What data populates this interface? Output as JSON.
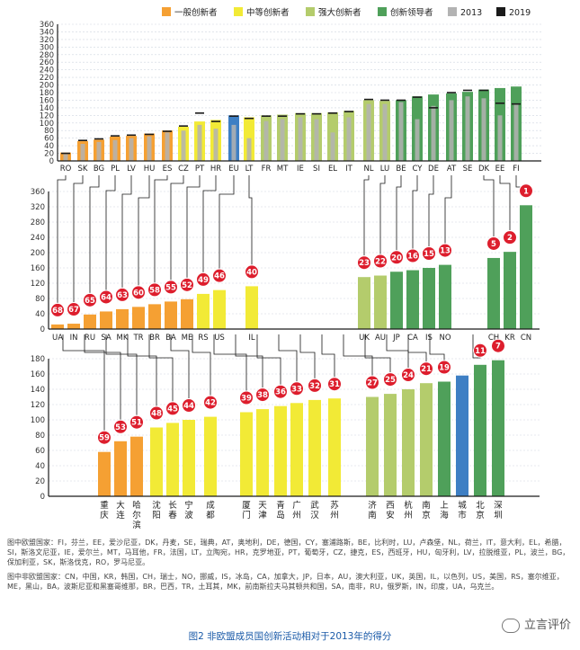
{
  "colors": {
    "modest": "#f5a033",
    "moderate": "#f2ea36",
    "strong": "#b4cc6c",
    "leader": "#4fa05a",
    "eu": "#3e7fc4",
    "y2013": "#b3b3b3",
    "y2019": "#1a1a1a",
    "badge": "#dd1e2d",
    "axis": "#1a1a1a",
    "grid": "#cfd6e0",
    "connector": "#1a1a1a"
  },
  "legend": [
    {
      "label": "一般创新者",
      "color_key": "modest",
      "marker": "box"
    },
    {
      "label": "中等创新者",
      "color_key": "moderate",
      "marker": "box"
    },
    {
      "label": "强大创新者",
      "color_key": "strong",
      "marker": "box"
    },
    {
      "label": "创新领导者",
      "color_key": "leader",
      "marker": "box"
    },
    {
      "label": "2013",
      "color_key": "y2013",
      "marker": "box"
    },
    {
      "label": "2019",
      "color_key": "y2019",
      "marker": "box"
    }
  ],
  "chart_data": [
    {
      "type": "bar",
      "panel": "EU member states",
      "ylim": [
        0,
        360
      ],
      "yticks": [
        0,
        20,
        40,
        60,
        80,
        100,
        120,
        140,
        160,
        180,
        200,
        220,
        240,
        260,
        280,
        300,
        320,
        340,
        360
      ],
      "grid": true,
      "legend_position": "top",
      "categories": [
        "RO",
        "SK",
        "BG",
        "PL",
        "LV",
        "HU",
        "ES",
        "CZ",
        "PT",
        "HR",
        "EU",
        "LT",
        "FR",
        "MT",
        "IE",
        "SI",
        "EL",
        "IT",
        "NL",
        "LU",
        "BE",
        "CY",
        "DE",
        "AT",
        "SE",
        "DK",
        "EE",
        "FI"
      ],
      "groups": [
        "modest",
        "modest",
        "modest",
        "modest",
        "modest",
        "modest",
        "modest",
        "moderate",
        "moderate",
        "moderate",
        "eu",
        "moderate",
        "strong",
        "strong",
        "strong",
        "strong",
        "strong",
        "strong",
        "strong",
        "strong",
        "leader",
        "leader",
        "leader",
        "leader",
        "leader",
        "leader",
        "leader",
        "leader"
      ],
      "values": [
        22,
        52,
        56,
        64,
        66,
        72,
        80,
        90,
        104,
        108,
        120,
        115,
        120,
        122,
        126,
        126,
        128,
        132,
        160,
        158,
        160,
        170,
        175,
        178,
        182,
        188,
        192,
        196
      ],
      "series_2013": [
        18,
        45,
        50,
        55,
        60,
        65,
        75,
        80,
        95,
        85,
        95,
        60,
        105,
        110,
        115,
        110,
        75,
        115,
        150,
        150,
        155,
        110,
        145,
        160,
        170,
        165,
        120,
        150
      ],
      "series_2019": [
        20,
        54,
        58,
        66,
        68,
        70,
        78,
        92,
        126,
        104,
        118,
        112,
        118,
        118,
        124,
        124,
        126,
        130,
        162,
        160,
        160,
        168,
        140,
        180,
        186,
        186,
        152,
        150
      ]
    },
    {
      "type": "bar",
      "panel": "Global competitors",
      "ylim": [
        0,
        360
      ],
      "yticks": [
        0,
        40,
        80,
        120,
        160,
        200,
        240,
        280,
        320,
        360
      ],
      "grid": true,
      "categories": [
        "UA",
        "IN",
        "RU",
        "SA",
        "MK",
        "TR",
        "BR",
        "BA",
        "ME",
        "RS",
        "US",
        "IL",
        "UK",
        "AU",
        "JP",
        "CA",
        "IS",
        "NO",
        "CH",
        "KR",
        "CN"
      ],
      "groups": [
        "modest",
        "modest",
        "modest",
        "modest",
        "modest",
        "modest",
        "modest",
        "modest",
        "modest",
        "moderate",
        "moderate",
        "moderate",
        "strong",
        "strong",
        "leader",
        "leader",
        "leader",
        "leader",
        "leader",
        "leader",
        "leader"
      ],
      "values": [
        12,
        14,
        38,
        46,
        52,
        58,
        65,
        72,
        78,
        92,
        102,
        112,
        136,
        140,
        150,
        154,
        160,
        168,
        186,
        202,
        324
      ],
      "ranks": [
        68,
        67,
        65,
        64,
        63,
        60,
        58,
        55,
        52,
        49,
        46,
        40,
        23,
        22,
        20,
        16,
        15,
        13,
        5,
        2,
        1
      ]
    },
    {
      "type": "bar",
      "panel": "Chinese cities",
      "ylim": [
        0,
        180
      ],
      "yticks": [
        0,
        20,
        40,
        60,
        80,
        100,
        120,
        140,
        160,
        180
      ],
      "grid": true,
      "categories": [
        "重庆",
        "大连",
        "哈尔滨",
        "沈阳",
        "长春",
        "宁波",
        "成都",
        "厦门",
        "天津",
        "青岛",
        "广州",
        "武汉",
        "苏州",
        "济南",
        "西安",
        "杭州",
        "南京",
        "上海",
        "城市",
        "北京",
        "深圳"
      ],
      "groups": [
        "modest",
        "modest",
        "modest",
        "moderate",
        "moderate",
        "moderate",
        "moderate",
        "moderate",
        "moderate",
        "moderate",
        "moderate",
        "moderate",
        "moderate",
        "strong",
        "strong",
        "strong",
        "strong",
        "leader",
        "eu",
        "leader",
        "leader"
      ],
      "values": [
        58,
        72,
        78,
        90,
        96,
        100,
        104,
        110,
        114,
        118,
        122,
        126,
        128,
        130,
        134,
        140,
        148,
        150,
        158,
        172,
        178
      ],
      "ranks": [
        59,
        53,
        51,
        48,
        45,
        44,
        42,
        39,
        38,
        36,
        33,
        32,
        31,
        27,
        25,
        24,
        21,
        19,
        "",
        11,
        7
      ]
    }
  ],
  "notes": [
    "图中欧盟国家：FI，芬兰，EE，爱沙尼亚，DK，丹麦，SE，瑞典，AT，奥地利，DE，德国，CY，塞浦路斯，BE，比利时，LU，卢森堡，NL，荷兰，IT，意大利，EL，希腊，SI，斯洛文尼亚，IE，爱尔兰，MT，马耳他，FR，法国，LT，立陶宛，HR，克罗地亚，PT，葡萄牙，CZ，捷克，ES，西班牙，HU，匈牙利，LV，拉脱维亚，PL，波兰，BG，保加利亚，SK，斯洛伐克，RO，罗马尼亚。",
    "图中非欧盟国家：CN，中国，KR，韩国，CH，瑞士，NO，挪威，IS，冰岛，CA，加拿大，JP，日本，AU，澳大利亚，UK，英国，IL，以色列，US，美国，RS，塞尔维亚，ME，黑山，BA，波斯尼亚和黑塞哥维那，BR，巴西，TR，土耳其，MK，前南斯拉夫马其顿共和国，SA，南非，RU，俄罗斯，IN，印度，UA，乌克兰。"
  ],
  "caption": "图2  非欧盟成员国创新活动相对于2013年的得分",
  "watermark": "立言评价"
}
